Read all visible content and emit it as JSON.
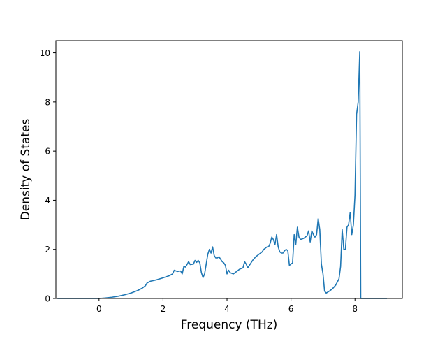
{
  "chart_data": {
    "type": "line",
    "title": "",
    "xlabel": "Frequency (THz)",
    "ylabel": "Density of States",
    "xlim": [
      -1.35,
      9.48
    ],
    "ylim": [
      0,
      10.5
    ],
    "xticks": [
      0,
      2,
      4,
      6,
      8
    ],
    "yticks": [
      0,
      2,
      4,
      6,
      8,
      10
    ],
    "grid": false,
    "legend": "none",
    "line_color": "#1f77b4",
    "series": [
      {
        "name": "",
        "points": [
          [
            -1.3,
            0.0
          ],
          [
            -0.5,
            0.0
          ],
          [
            -0.3,
            0.0
          ],
          [
            0.0,
            0.0
          ],
          [
            0.2,
            0.02
          ],
          [
            0.4,
            0.05
          ],
          [
            0.6,
            0.09
          ],
          [
            0.8,
            0.15
          ],
          [
            1.0,
            0.22
          ],
          [
            1.2,
            0.32
          ],
          [
            1.35,
            0.42
          ],
          [
            1.45,
            0.52
          ],
          [
            1.5,
            0.63
          ],
          [
            1.6,
            0.7
          ],
          [
            1.8,
            0.76
          ],
          [
            2.0,
            0.84
          ],
          [
            2.2,
            0.93
          ],
          [
            2.3,
            1.0
          ],
          [
            2.35,
            1.15
          ],
          [
            2.45,
            1.1
          ],
          [
            2.55,
            1.12
          ],
          [
            2.6,
            1.0
          ],
          [
            2.65,
            1.3
          ],
          [
            2.7,
            1.28
          ],
          [
            2.75,
            1.38
          ],
          [
            2.8,
            1.5
          ],
          [
            2.85,
            1.38
          ],
          [
            2.95,
            1.4
          ],
          [
            3.0,
            1.55
          ],
          [
            3.05,
            1.47
          ],
          [
            3.1,
            1.55
          ],
          [
            3.15,
            1.45
          ],
          [
            3.2,
            1.05
          ],
          [
            3.25,
            0.85
          ],
          [
            3.3,
            1.0
          ],
          [
            3.35,
            1.4
          ],
          [
            3.4,
            1.8
          ],
          [
            3.45,
            2.0
          ],
          [
            3.5,
            1.85
          ],
          [
            3.55,
            2.1
          ],
          [
            3.6,
            1.75
          ],
          [
            3.65,
            1.65
          ],
          [
            3.7,
            1.65
          ],
          [
            3.75,
            1.7
          ],
          [
            3.8,
            1.6
          ],
          [
            3.85,
            1.5
          ],
          [
            3.9,
            1.45
          ],
          [
            3.95,
            1.35
          ],
          [
            4.0,
            1.0
          ],
          [
            4.05,
            1.15
          ],
          [
            4.1,
            1.05
          ],
          [
            4.2,
            1.0
          ],
          [
            4.3,
            1.1
          ],
          [
            4.4,
            1.2
          ],
          [
            4.5,
            1.25
          ],
          [
            4.55,
            1.5
          ],
          [
            4.6,
            1.4
          ],
          [
            4.65,
            1.25
          ],
          [
            4.7,
            1.35
          ],
          [
            4.8,
            1.55
          ],
          [
            4.9,
            1.7
          ],
          [
            5.0,
            1.8
          ],
          [
            5.1,
            1.9
          ],
          [
            5.15,
            2.0
          ],
          [
            5.2,
            2.05
          ],
          [
            5.25,
            2.1
          ],
          [
            5.3,
            2.1
          ],
          [
            5.35,
            2.25
          ],
          [
            5.4,
            2.5
          ],
          [
            5.45,
            2.4
          ],
          [
            5.5,
            2.2
          ],
          [
            5.55,
            2.6
          ],
          [
            5.6,
            2.1
          ],
          [
            5.65,
            1.9
          ],
          [
            5.7,
            1.85
          ],
          [
            5.75,
            1.85
          ],
          [
            5.8,
            1.95
          ],
          [
            5.85,
            2.0
          ],
          [
            5.9,
            1.95
          ],
          [
            5.95,
            1.35
          ],
          [
            6.0,
            1.4
          ],
          [
            6.05,
            1.45
          ],
          [
            6.1,
            2.6
          ],
          [
            6.15,
            2.2
          ],
          [
            6.2,
            2.9
          ],
          [
            6.25,
            2.5
          ],
          [
            6.3,
            2.4
          ],
          [
            6.4,
            2.45
          ],
          [
            6.5,
            2.55
          ],
          [
            6.55,
            2.75
          ],
          [
            6.6,
            2.3
          ],
          [
            6.65,
            2.75
          ],
          [
            6.7,
            2.6
          ],
          [
            6.75,
            2.5
          ],
          [
            6.8,
            2.6
          ],
          [
            6.85,
            3.25
          ],
          [
            6.9,
            2.8
          ],
          [
            6.95,
            1.4
          ],
          [
            7.0,
            1.0
          ],
          [
            7.05,
            0.3
          ],
          [
            7.1,
            0.22
          ],
          [
            7.2,
            0.3
          ],
          [
            7.3,
            0.4
          ],
          [
            7.4,
            0.55
          ],
          [
            7.5,
            0.8
          ],
          [
            7.55,
            1.3
          ],
          [
            7.6,
            2.8
          ],
          [
            7.65,
            2.0
          ],
          [
            7.7,
            2.0
          ],
          [
            7.75,
            2.9
          ],
          [
            7.8,
            3.0
          ],
          [
            7.85,
            3.5
          ],
          [
            7.9,
            2.6
          ],
          [
            7.95,
            3.0
          ],
          [
            8.0,
            4.2
          ],
          [
            8.05,
            7.5
          ],
          [
            8.1,
            8.0
          ],
          [
            8.15,
            10.05
          ],
          [
            8.18,
            0.0
          ],
          [
            9.0,
            0.0
          ]
        ]
      }
    ]
  }
}
